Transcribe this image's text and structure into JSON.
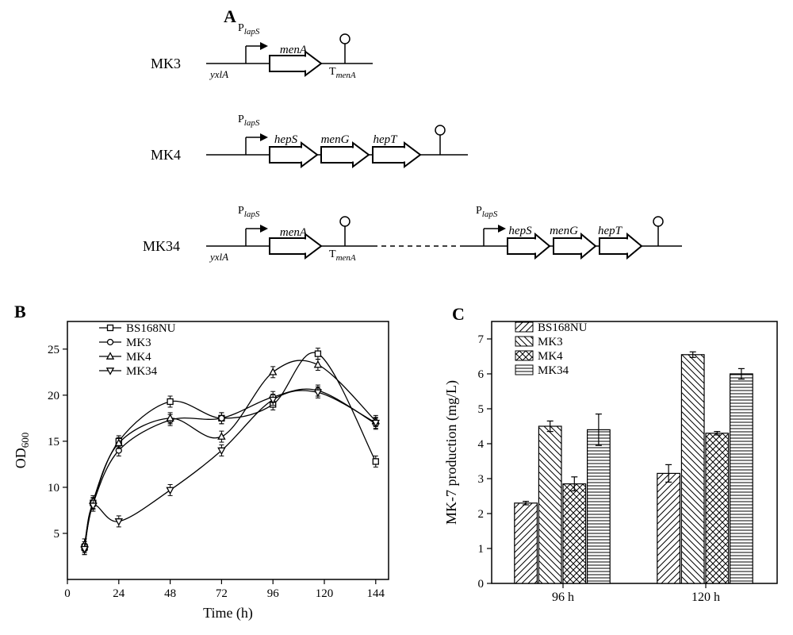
{
  "panelA": {
    "label": "A",
    "constructs": [
      {
        "name": "MK3",
        "promoter": "P",
        "promoter_sub": "lapS",
        "genes": [
          "menA"
        ],
        "integration": "yxlA",
        "terminator": "T",
        "terminator_sub": "menA"
      },
      {
        "name": "MK4",
        "promoter": "P",
        "promoter_sub": "lapS",
        "genes": [
          "hepS",
          "menG",
          "hepT"
        ]
      },
      {
        "name": "MK34"
      }
    ]
  },
  "panelB": {
    "label": "B",
    "xlabel": "Time (h)",
    "ylabel": "OD",
    "ylabel_sub": "600",
    "xlim": [
      0,
      150
    ],
    "ylim": [
      0,
      28
    ],
    "xticks": [
      0,
      24,
      48,
      72,
      96,
      120,
      144
    ],
    "yticks": [
      5,
      10,
      15,
      20,
      25
    ],
    "series": [
      {
        "name": "BS168NU",
        "marker": "square",
        "x": [
          8,
          12,
          24,
          48,
          72,
          96,
          117,
          144
        ],
        "y": [
          3.5,
          8.3,
          15.0,
          19.3,
          17.5,
          19.0,
          24.5,
          12.8
        ]
      },
      {
        "name": "MK3",
        "marker": "circle",
        "x": [
          8,
          12,
          24,
          48,
          72,
          96,
          117,
          144
        ],
        "y": [
          3.3,
          8.2,
          14.0,
          17.3,
          17.5,
          19.8,
          20.5,
          16.9
        ]
      },
      {
        "name": "MK4",
        "marker": "triangle",
        "x": [
          8,
          12,
          24,
          48,
          72,
          96,
          117,
          144
        ],
        "y": [
          3.8,
          8.5,
          14.8,
          17.5,
          15.5,
          22.5,
          23.3,
          17.2
        ]
      },
      {
        "name": "MK34",
        "marker": "down-triangle",
        "x": [
          8,
          12,
          24,
          48,
          72,
          96,
          117,
          144
        ],
        "y": [
          3.3,
          8.0,
          6.3,
          9.7,
          14.0,
          19.5,
          20.3,
          17.0
        ]
      }
    ],
    "line_color": "#000000",
    "marker_fill": "#ffffff",
    "marker_size": 7,
    "error_bar": 0.6
  },
  "panelC": {
    "label": "C",
    "xlabel": "",
    "ylabel": "MK-7 production (mg/L)",
    "ylim": [
      0,
      7.5
    ],
    "yticks": [
      0,
      1,
      2,
      3,
      4,
      5,
      6,
      7
    ],
    "groups": [
      "96 h",
      "120 h"
    ],
    "series": [
      {
        "name": "BS168NU",
        "pattern": "diag-right",
        "values": [
          2.3,
          3.15
        ],
        "errors": [
          0.05,
          0.25
        ]
      },
      {
        "name": "MK3",
        "pattern": "diag-left",
        "values": [
          4.5,
          6.55
        ],
        "errors": [
          0.15,
          0.08
        ]
      },
      {
        "name": "MK4",
        "pattern": "crosshatch",
        "values": [
          2.85,
          4.3
        ],
        "errors": [
          0.2,
          0.05
        ]
      },
      {
        "name": "MK34",
        "pattern": "horizontal",
        "values": [
          4.4,
          6.0
        ],
        "errors": [
          0.45,
          0.15
        ]
      }
    ],
    "bar_fill": "#ffffff",
    "bar_stroke": "#000000"
  }
}
